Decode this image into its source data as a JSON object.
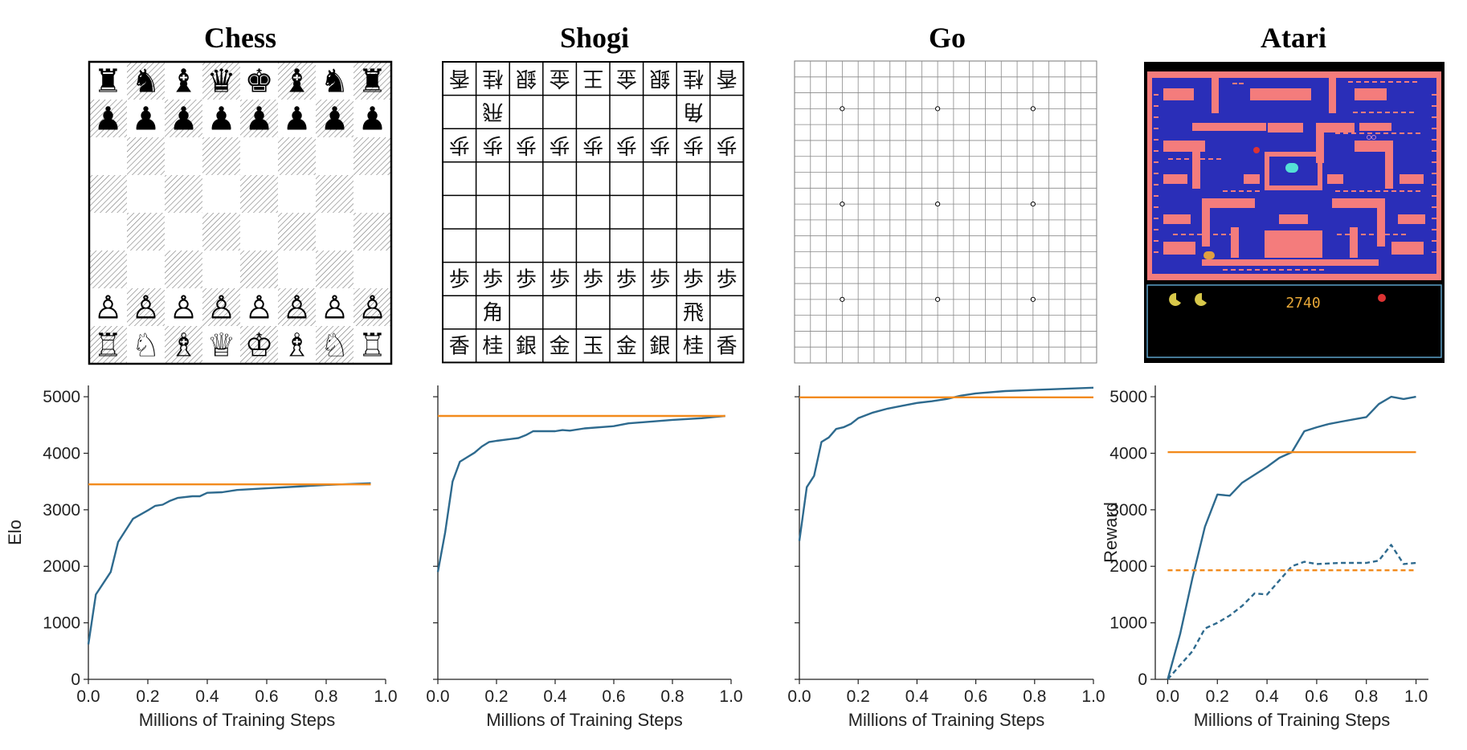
{
  "games": [
    {
      "key": "chess",
      "title": "Chess"
    },
    {
      "key": "shogi",
      "title": "Shogi"
    },
    {
      "key": "go",
      "title": "Go"
    },
    {
      "key": "atari",
      "title": "Atari"
    }
  ],
  "boards": {
    "chess": {
      "black_back": [
        "♜",
        "♞",
        "♝",
        "♛",
        "♚",
        "♝",
        "♞",
        "♜"
      ],
      "black_pawn": "♟",
      "white_pawn": "♙",
      "white_back": [
        "♖",
        "♘",
        "♗",
        "♕",
        "♔",
        "♗",
        "♘",
        "♖"
      ]
    },
    "shogi": {
      "top_row": [
        "香",
        "桂",
        "銀",
        "金",
        "王",
        "金",
        "銀",
        "桂",
        "香"
      ],
      "top_rook": "飛",
      "top_bishop": "角",
      "top_pawn": "歩",
      "bottom_pawn": "歩",
      "bottom_bishop": "角",
      "bottom_rook": "飛",
      "bottom_row": [
        "香",
        "桂",
        "銀",
        "金",
        "玉",
        "金",
        "銀",
        "桂",
        "香"
      ]
    },
    "go": {
      "size": 19
    },
    "atari": {
      "score": "2740",
      "maze_color": "#f47c7c",
      "background": "#2a2eb8"
    }
  },
  "colors": {
    "agent": "#2e6a8e",
    "baseline": "#f28a1c"
  },
  "chart_data": [
    {
      "type": "line",
      "game": "Chess",
      "xlabel": "Millions of Training Steps",
      "ylabel": "Elo",
      "xlim": [
        0,
        1.0
      ],
      "ylim": [
        0,
        5200
      ],
      "xticks": [
        "0.0",
        "0.2",
        "0.4",
        "0.6",
        "0.8",
        "1.0"
      ],
      "yticks": [
        "0",
        "1000",
        "2000",
        "3000",
        "4000",
        "5000"
      ],
      "series": [
        {
          "style": "solid",
          "color": "#2e6a8e",
          "x": [
            0,
            0.025,
            0.075,
            0.1,
            0.15,
            0.2,
            0.225,
            0.25,
            0.275,
            0.3,
            0.35,
            0.375,
            0.4,
            0.45,
            0.5,
            0.6,
            0.7,
            0.8,
            0.95
          ],
          "y": [
            620,
            1500,
            1900,
            2430,
            2840,
            2990,
            3070,
            3090,
            3160,
            3210,
            3240,
            3240,
            3300,
            3310,
            3350,
            3380,
            3410,
            3440,
            3470
          ]
        },
        {
          "style": "solid",
          "color": "#f28a1c",
          "x": [
            0,
            0.95
          ],
          "y": [
            3450,
            3450
          ]
        }
      ]
    },
    {
      "type": "line",
      "game": "Shogi",
      "xlabel": "Millions of Training Steps",
      "ylabel": "",
      "xlim": [
        0,
        1.0
      ],
      "ylim": [
        0,
        5200
      ],
      "xticks": [
        "0.0",
        "0.2",
        "0.4",
        "0.6",
        "0.8",
        "1.0"
      ],
      "yticks": [
        "0",
        "1000",
        "2000",
        "3000",
        "4000",
        "5000"
      ],
      "series": [
        {
          "style": "solid",
          "color": "#2e6a8e",
          "x": [
            0,
            0.025,
            0.05,
            0.075,
            0.1,
            0.125,
            0.15,
            0.175,
            0.2,
            0.275,
            0.3,
            0.325,
            0.4,
            0.425,
            0.45,
            0.5,
            0.6,
            0.65,
            0.7,
            0.8,
            0.9,
            0.98
          ],
          "y": [
            1900,
            2600,
            3500,
            3850,
            3930,
            4010,
            4120,
            4200,
            4220,
            4270,
            4320,
            4390,
            4390,
            4410,
            4400,
            4440,
            4480,
            4530,
            4550,
            4590,
            4620,
            4660
          ]
        },
        {
          "style": "solid",
          "color": "#f28a1c",
          "x": [
            0,
            0.98
          ],
          "y": [
            4660,
            4660
          ]
        }
      ]
    },
    {
      "type": "line",
      "game": "Go",
      "xlabel": "Millions of Training Steps",
      "ylabel": "",
      "xlim": [
        0,
        1.0
      ],
      "ylim": [
        0,
        5200
      ],
      "xticks": [
        "0.0",
        "0.2",
        "0.4",
        "0.6",
        "0.8",
        "1.0"
      ],
      "yticks": [
        "0",
        "1000",
        "2000",
        "3000",
        "4000",
        "5000"
      ],
      "series": [
        {
          "style": "solid",
          "color": "#2e6a8e",
          "x": [
            0,
            0.025,
            0.05,
            0.075,
            0.1,
            0.125,
            0.15,
            0.175,
            0.2,
            0.25,
            0.3,
            0.35,
            0.4,
            0.45,
            0.5,
            0.55,
            0.6,
            0.7,
            0.8,
            0.9,
            1.0
          ],
          "y": [
            2450,
            3400,
            3600,
            4200,
            4280,
            4430,
            4460,
            4520,
            4620,
            4720,
            4790,
            4840,
            4890,
            4920,
            4960,
            5020,
            5060,
            5100,
            5120,
            5140,
            5160
          ]
        },
        {
          "style": "solid",
          "color": "#f28a1c",
          "x": [
            0,
            1.0
          ],
          "y": [
            4990,
            4990
          ]
        }
      ]
    },
    {
      "type": "line",
      "game": "Atari",
      "xlabel": "Millions of Training Steps",
      "ylabel": "Reward",
      "xlim": [
        -0.05,
        1.05
      ],
      "ylim": [
        0,
        5200
      ],
      "xticks": [
        "0.0",
        "0.2",
        "0.4",
        "0.6",
        "0.8",
        "1.0"
      ],
      "yticks": [
        "0",
        "1000",
        "2000",
        "3000",
        "4000",
        "5000"
      ],
      "series": [
        {
          "style": "solid",
          "color": "#2e6a8e",
          "x": [
            0,
            0.05,
            0.1,
            0.15,
            0.2,
            0.25,
            0.3,
            0.35,
            0.4,
            0.45,
            0.5,
            0.55,
            0.6,
            0.65,
            0.7,
            0.75,
            0.8,
            0.85,
            0.9,
            0.95,
            1.0
          ],
          "y": [
            0,
            800,
            1800,
            2700,
            3270,
            3250,
            3480,
            3620,
            3760,
            3920,
            4020,
            4390,
            4460,
            4520,
            4560,
            4600,
            4640,
            4870,
            5000,
            4960,
            5000
          ]
        },
        {
          "style": "solid",
          "color": "#f28a1c",
          "x": [
            0,
            1.0
          ],
          "y": [
            4020,
            4020
          ]
        },
        {
          "style": "dashed",
          "color": "#2e6a8e",
          "x": [
            0,
            0.05,
            0.1,
            0.15,
            0.2,
            0.25,
            0.3,
            0.35,
            0.4,
            0.45,
            0.5,
            0.55,
            0.6,
            0.65,
            0.7,
            0.75,
            0.8,
            0.85,
            0.9,
            0.95,
            1.0
          ],
          "y": [
            0,
            250,
            500,
            900,
            1000,
            1130,
            1300,
            1520,
            1500,
            1750,
            2000,
            2080,
            2040,
            2050,
            2060,
            2060,
            2060,
            2100,
            2380,
            2040,
            2060
          ]
        },
        {
          "style": "dashed",
          "color": "#f28a1c",
          "x": [
            0,
            1.0
          ],
          "y": [
            1930,
            1930
          ]
        }
      ]
    }
  ]
}
